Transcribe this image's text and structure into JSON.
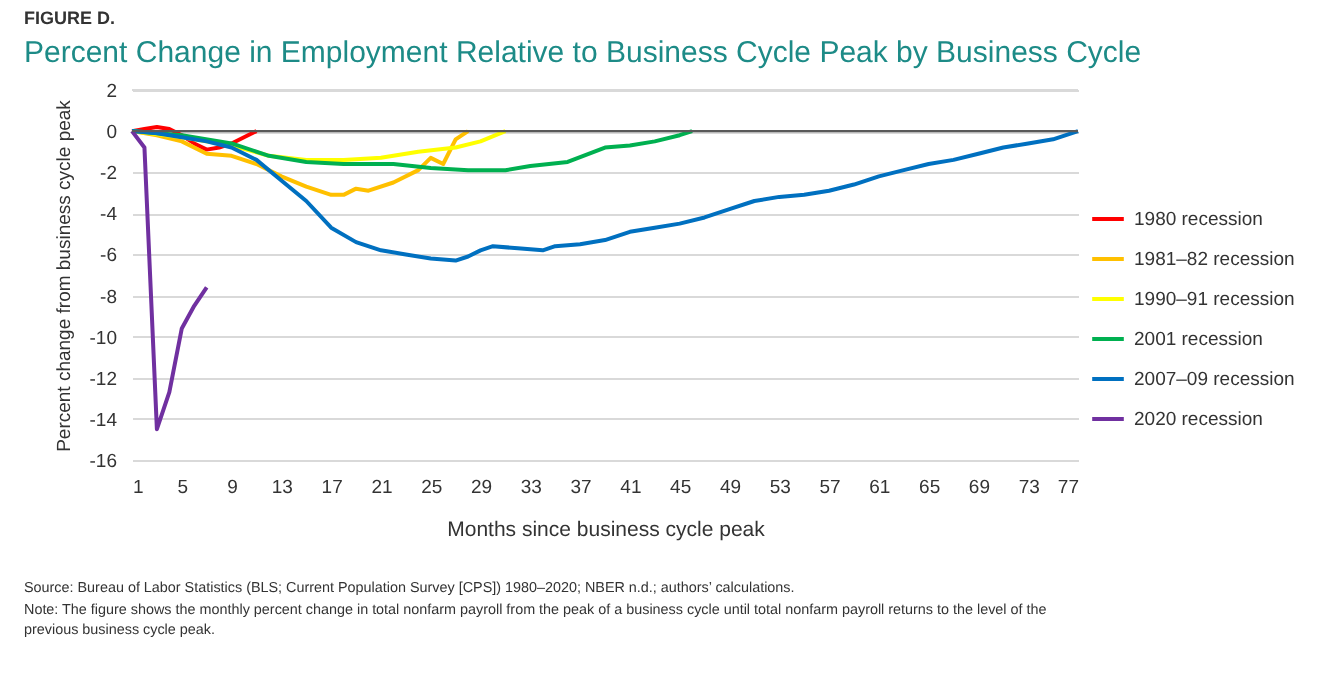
{
  "chart_data": {
    "type": "line",
    "subtitle": "FIGURE D.",
    "title": "Percent Change in Employment Relative to Business Cycle Peak by Business Cycle",
    "xlabel": "Months since business cycle peak",
    "ylabel": "Percent change from business cycle peak",
    "xlim": [
      1,
      77
    ],
    "xticks": [
      1,
      5,
      9,
      13,
      17,
      21,
      25,
      29,
      33,
      37,
      41,
      45,
      49,
      53,
      57,
      61,
      65,
      69,
      73,
      77
    ],
    "ylim": [
      -16,
      2
    ],
    "yticks": [
      -16,
      -14,
      -12,
      -10,
      -8,
      -6,
      -4,
      -2,
      0,
      2
    ],
    "grid": "y",
    "legend": "right",
    "marker": "none",
    "line_style": "solid",
    "ref_lines": [
      {
        "axis": "y",
        "value": 0,
        "color": "#595959"
      }
    ],
    "series": [
      {
        "name": "1980 recession",
        "color": "#ff0000",
        "x": [
          1,
          2,
          3,
          4,
          5,
          6,
          7,
          8,
          9,
          10,
          11
        ],
        "values": [
          0,
          0.1,
          0.2,
          0.1,
          -0.2,
          -0.6,
          -0.9,
          -0.8,
          -0.6,
          -0.3,
          0
        ]
      },
      {
        "name": "1981–82 recession",
        "color": "#ffc000",
        "x": [
          1,
          3,
          5,
          7,
          9,
          11,
          13,
          15,
          17,
          18,
          19,
          20,
          22,
          24,
          25,
          26,
          27,
          28
        ],
        "values": [
          0,
          -0.2,
          -0.5,
          -1.1,
          -1.2,
          -1.6,
          -2.2,
          -2.7,
          -3.1,
          -3.1,
          -2.8,
          -2.9,
          -2.5,
          -1.9,
          -1.3,
          -1.6,
          -0.4,
          0
        ]
      },
      {
        "name": "1990–91 recession",
        "color": "#ffff00",
        "x": [
          1,
          5,
          9,
          12,
          15,
          18,
          21,
          24,
          27,
          29,
          31
        ],
        "values": [
          0,
          -0.3,
          -0.7,
          -1.2,
          -1.4,
          -1.4,
          -1.3,
          -1.0,
          -0.8,
          -0.5,
          0
        ]
      },
      {
        "name": "2001 recession",
        "color": "#00b050",
        "x": [
          1,
          5,
          9,
          12,
          15,
          18,
          22,
          25,
          28,
          31,
          33,
          36,
          39,
          41,
          43,
          45,
          46
        ],
        "values": [
          0,
          -0.2,
          -0.6,
          -1.2,
          -1.5,
          -1.6,
          -1.6,
          -1.8,
          -1.9,
          -1.9,
          -1.7,
          -1.5,
          -0.8,
          -0.7,
          -0.5,
          -0.2,
          0
        ]
      },
      {
        "name": "2007–09 recession",
        "color": "#0070c0",
        "x": [
          1,
          3,
          5,
          7,
          9,
          11,
          13,
          15,
          17,
          19,
          21,
          23,
          25,
          27,
          28,
          29,
          30,
          32,
          34,
          35,
          37,
          39,
          41,
          43,
          45,
          47,
          49,
          51,
          53,
          55,
          57,
          59,
          61,
          63,
          65,
          67,
          69,
          71,
          73,
          75,
          77
        ],
        "values": [
          0,
          -0.1,
          -0.3,
          -0.5,
          -0.8,
          -1.4,
          -2.4,
          -3.4,
          -4.7,
          -5.4,
          -5.8,
          -6.0,
          -6.2,
          -6.3,
          -6.1,
          -5.8,
          -5.6,
          -5.7,
          -5.8,
          -5.6,
          -5.5,
          -5.3,
          -4.9,
          -4.7,
          -4.5,
          -4.2,
          -3.8,
          -3.4,
          -3.2,
          -3.1,
          -2.9,
          -2.6,
          -2.2,
          -1.9,
          -1.6,
          -1.4,
          -1.1,
          -0.8,
          -0.6,
          -0.4,
          0
        ]
      },
      {
        "name": "2020 recession",
        "color": "#7030a0",
        "x": [
          1,
          2,
          3,
          4,
          5,
          6,
          7
        ],
        "values": [
          0,
          -0.8,
          -14.5,
          -12.7,
          -9.6,
          -8.5,
          -7.6
        ]
      }
    ],
    "annotations": [
      "Source: Bureau of Labor Statistics (BLS; Current Population Survey [CPS]) 1980–2020; NBER n.d.; authors’ calculations.",
      "Note: The figure shows the monthly percent change in total nonfarm payroll from the peak of a business cycle until total nonfarm payroll returns to the level of the previous business cycle peak."
    ]
  }
}
